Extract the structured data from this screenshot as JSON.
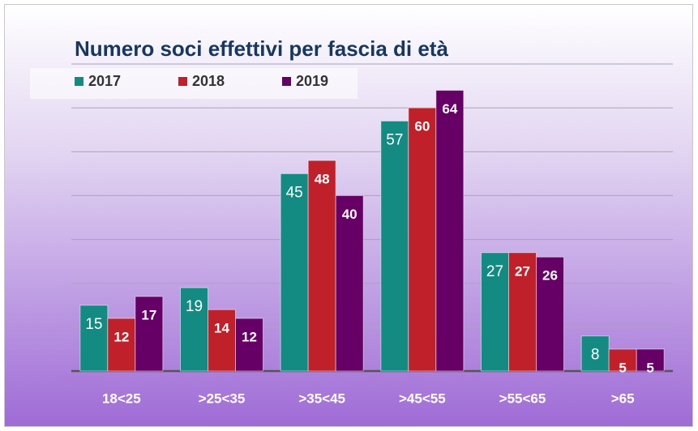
{
  "chart_data": {
    "type": "bar",
    "title": "Numero soci effettivi per fascia di età",
    "categories": [
      "18<25",
      ">25<35",
      ">35<45",
      ">45<55",
      ">55<65",
      ">65"
    ],
    "series": [
      {
        "name": "2017",
        "color": "#138b82",
        "values": [
          15,
          19,
          45,
          57,
          27,
          8
        ]
      },
      {
        "name": "2018",
        "color": "#c0202a",
        "values": [
          12,
          14,
          48,
          60,
          27,
          5
        ]
      },
      {
        "name": "2019",
        "color": "#660066",
        "values": [
          17,
          12,
          40,
          64,
          26,
          5
        ]
      }
    ],
    "ylim": [
      0,
      70
    ],
    "yticks": [
      0,
      10,
      20,
      30,
      40,
      50,
      60,
      70
    ],
    "grid": true,
    "legend": "top-left"
  }
}
